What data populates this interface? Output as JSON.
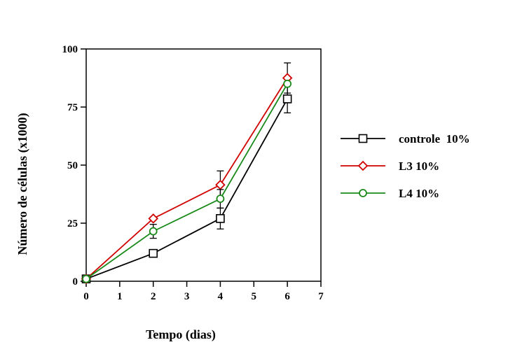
{
  "chart_data": {
    "type": "line",
    "xlabel": "Tempo (dias)",
    "ylabel": "Número de células (x1000)",
    "xlim": [
      0,
      7
    ],
    "ylim": [
      0,
      100
    ],
    "xticks": [
      "0",
      "1",
      "2",
      "3",
      "4",
      "5",
      "6",
      "7"
    ],
    "yticks": [
      "0",
      "25",
      "50",
      "75",
      "100"
    ],
    "x": [
      0,
      2,
      4,
      6
    ],
    "series": [
      {
        "name": "controle  10%",
        "color": "#000000",
        "marker": "square",
        "values": [
          1,
          12,
          27,
          78.5
        ],
        "error": [
          0,
          0,
          4.5,
          6
        ]
      },
      {
        "name": "L3 10%",
        "color": "#d00000",
        "marker": "diamond",
        "values": [
          1,
          27,
          41.5,
          87.5
        ],
        "error": [
          0,
          0,
          6,
          6.5
        ]
      },
      {
        "name": "L4 10%",
        "color": "#1a8a1a",
        "marker": "circle",
        "values": [
          1,
          21.5,
          35.5,
          85
        ],
        "error": [
          0,
          3,
          4,
          0
        ]
      }
    ],
    "legend_position": "right",
    "grid": false
  }
}
